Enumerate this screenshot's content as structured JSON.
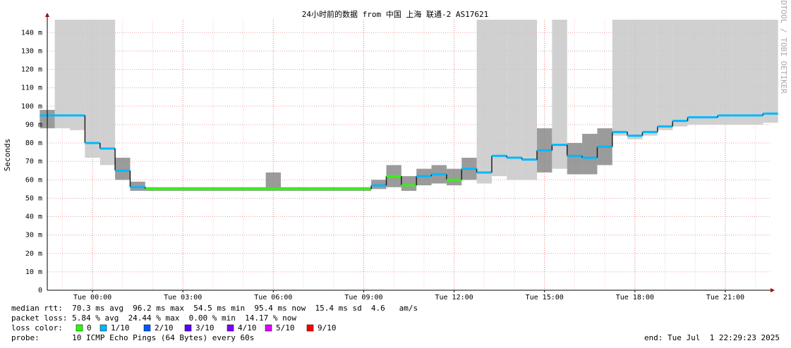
{
  "chart_data": {
    "type": "smokeping",
    "title": "24小时前的数据 from 中国 上海 联通-2 AS17621",
    "y_label": "Seconds",
    "side_note": "RRDTOOL / TOBI OETIKER",
    "xlim": [
      -1.5,
      22.5
    ],
    "ylim": [
      0,
      147
    ],
    "xticks": [
      {
        "value": 0,
        "label": "Tue 00:00"
      },
      {
        "value": 3,
        "label": "Tue 03:00"
      },
      {
        "value": 6,
        "label": "Tue 06:00"
      },
      {
        "value": 9,
        "label": "Tue 09:00"
      },
      {
        "value": 12,
        "label": "Tue 12:00"
      },
      {
        "value": 15,
        "label": "Tue 15:00"
      },
      {
        "value": 18,
        "label": "Tue 18:00"
      },
      {
        "value": 21,
        "label": "Tue 21:00"
      }
    ],
    "x_minor": [
      -1,
      1,
      2,
      4,
      5,
      7,
      8,
      10,
      11,
      13,
      14,
      16,
      17,
      19,
      20,
      22
    ],
    "yticks": [
      0,
      {
        "value": 10,
        "label": "10 m"
      },
      {
        "value": 20,
        "label": "20 m"
      },
      {
        "value": 30,
        "label": "30 m"
      },
      {
        "value": 40,
        "label": "40 m"
      },
      {
        "value": 50,
        "label": "50 m"
      },
      {
        "value": 60,
        "label": "60 m"
      },
      {
        "value": 70,
        "label": "70 m"
      },
      {
        "value": 80,
        "label": "80 m"
      },
      {
        "value": 90,
        "label": "90 m"
      },
      {
        "value": 100,
        "label": "100 m"
      },
      {
        "value": 110,
        "label": "110 m"
      },
      {
        "value": 120,
        "label": "120 m"
      },
      {
        "value": 130,
        "label": "130 m"
      },
      {
        "value": 140,
        "label": "140 m"
      }
    ],
    "x": [
      -1.5,
      -1,
      -0.5,
      0,
      0.5,
      1,
      1.5,
      2,
      2.5,
      3,
      3.5,
      4,
      4.5,
      5,
      5.5,
      6,
      6.5,
      7,
      7.5,
      8,
      8.5,
      9,
      9.5,
      10,
      10.5,
      11,
      11.5,
      12,
      12.5,
      13,
      13.5,
      14,
      14.5,
      15,
      15.5,
      16,
      16.5,
      17,
      17.5,
      18,
      18.5,
      19,
      19.5,
      20,
      20.5,
      21,
      21.5,
      22,
      22.5
    ],
    "median": [
      95,
      95,
      95,
      80,
      77,
      65,
      56,
      55,
      55,
      55,
      55,
      55,
      55,
      55,
      55,
      55,
      55,
      55,
      55,
      55,
      55,
      55,
      57,
      62,
      57,
      62,
      63,
      60,
      66,
      64,
      73,
      72,
      71,
      76,
      79,
      73,
      72,
      78,
      86,
      84,
      86,
      89,
      92,
      94,
      94,
      95,
      95,
      95,
      96
    ],
    "smoke_low": [
      88,
      88,
      87,
      72,
      68,
      60,
      54,
      54,
      54,
      54,
      54,
      54,
      54,
      54,
      54,
      54,
      54,
      54,
      54,
      54,
      54,
      54,
      55,
      56,
      54,
      57,
      58,
      57,
      60,
      58,
      62,
      60,
      60,
      64,
      66,
      63,
      63,
      68,
      84,
      82,
      84,
      87,
      89,
      90,
      90,
      90,
      90,
      90,
      91
    ],
    "smoke_high": [
      98,
      147,
      147,
      147,
      147,
      72,
      59,
      56,
      56,
      56,
      56,
      56,
      56,
      56,
      56,
      64,
      56,
      56,
      56,
      56,
      56,
      56,
      60,
      68,
      62,
      66,
      68,
      66,
      72,
      147,
      147,
      147,
      147,
      88,
      147,
      80,
      85,
      88,
      147,
      147,
      147,
      147,
      147,
      147,
      147,
      147,
      147,
      147,
      147
    ],
    "loss": [
      1,
      1,
      1,
      1,
      1,
      1,
      1,
      0,
      0,
      0,
      0,
      0,
      0,
      0,
      0,
      0,
      0,
      0,
      0,
      0,
      0,
      0,
      1,
      0,
      0,
      1,
      1,
      0,
      1,
      1,
      1,
      1,
      1,
      1,
      1,
      1,
      1,
      1,
      1,
      1,
      1,
      1,
      1,
      1,
      1,
      1,
      1,
      1,
      1
    ],
    "loss_legend_title": "loss color:",
    "loss_legend": [
      {
        "value": 0,
        "label": "0",
        "color": "#26ff00"
      },
      {
        "value": 1,
        "label": "1/10",
        "color": "#00b8ff"
      },
      {
        "value": 2,
        "label": "2/10",
        "color": "#0059ff"
      },
      {
        "value": 3,
        "label": "3/10",
        "color": "#5e00ff"
      },
      {
        "value": 4,
        "label": "4/10",
        "color": "#7e00ff"
      },
      {
        "value": 5,
        "label": "5/10",
        "color": "#dd00ff"
      },
      {
        "value": 9,
        "label": "9/10",
        "color": "#ff0000"
      }
    ],
    "stats": [
      "median rtt:  70.3 ms avg  96.2 ms max  54.5 ms min  95.4 ms now  15.4 ms sd  4.6   am/s",
      "packet loss: 5.84 % avg  24.44 % max  0.00 % min  14.17 % now"
    ],
    "probe": "probe:       10 ICMP Echo Pings (64 Bytes) every 60s",
    "end": "end: Tue Jul  1 22:29:23 2025"
  }
}
